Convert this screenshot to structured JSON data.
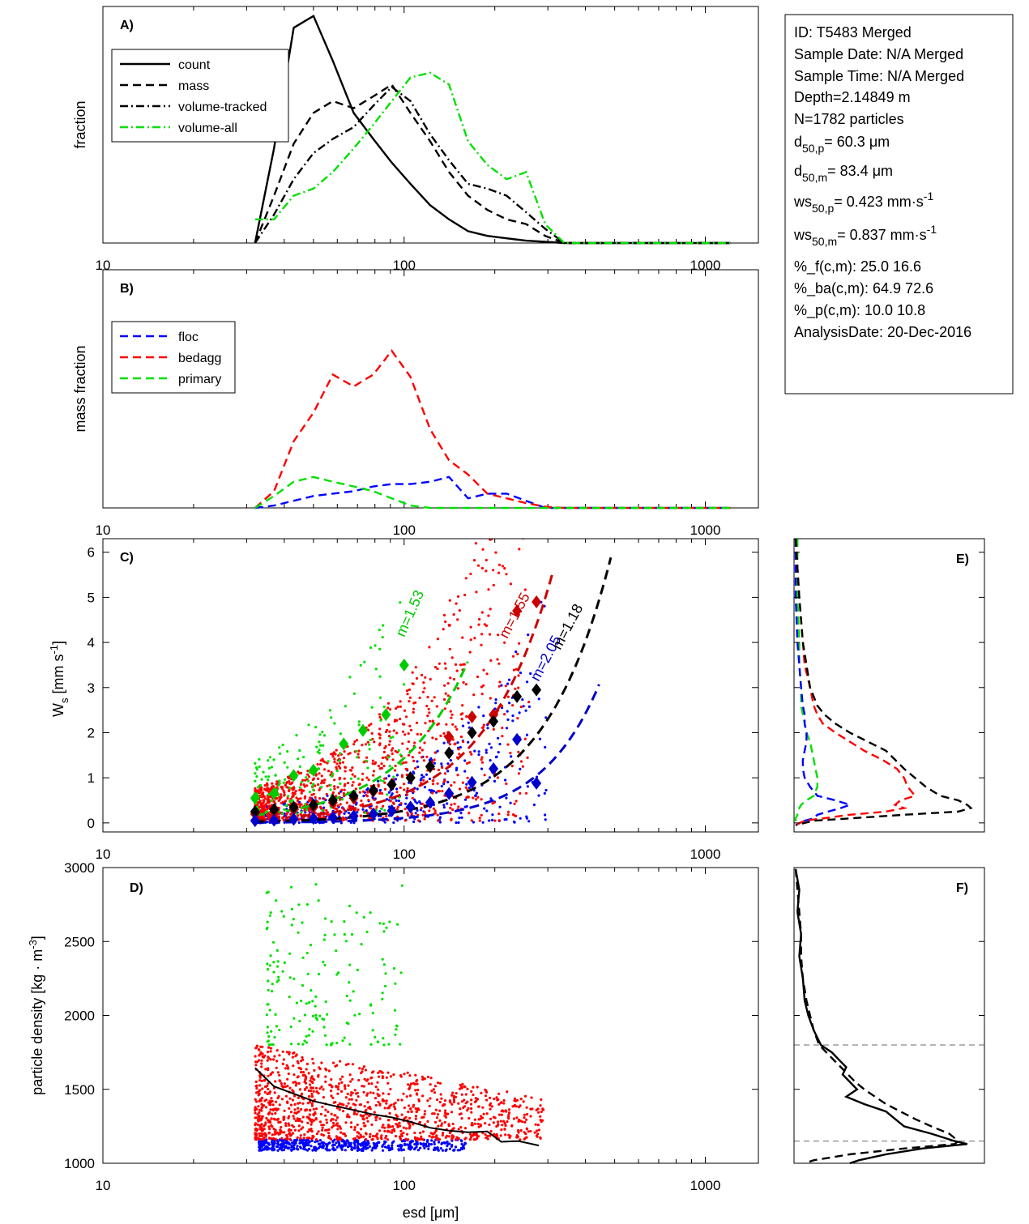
{
  "info_box": {
    "lines": [
      {
        "t": "ID: T5483 Merged"
      },
      {
        "t": "Sample Date: N/A Merged"
      },
      {
        "t": "Sample Time: N/A Merged"
      },
      {
        "t": "Depth=2.14849 m"
      },
      {
        "t": "N=1782 particles"
      },
      {
        "t": "d",
        "sub": "50,p",
        "rest": "=  60.3 μm"
      },
      {
        "t": "d",
        "sub": "50,m",
        "rest": "=  83.4 μm"
      },
      {
        "t": "ws",
        "sub": "50,p",
        "rest": "= 0.423 mm·s",
        "sup": "-1"
      },
      {
        "t": "ws",
        "sub": "50,m",
        "rest": "= 0.837 mm·s",
        "sup": "-1"
      },
      {
        "t": "%_f(c,m): 25.0 16.6"
      },
      {
        "t": "%_ba(c,m): 64.9 72.6"
      },
      {
        "t": "%_p(c,m): 10.0 10.8"
      },
      {
        "t": "AnalysisDate: 20-Dec-2016"
      }
    ]
  },
  "chart_data": [
    {
      "panel": "A)",
      "type": "line",
      "xscale": "log",
      "xlim": [
        10,
        1500
      ],
      "ylim": [
        0,
        1
      ],
      "ylabel": "fraction",
      "xticks": [
        10,
        100,
        1000
      ],
      "xticklabels": [
        "10",
        "100",
        "1000"
      ],
      "legend": "top-left",
      "x": [
        32,
        37,
        43,
        50,
        58,
        68,
        79,
        91,
        105,
        122,
        141,
        163,
        189,
        219,
        254,
        294,
        340,
        394,
        456,
        528,
        611,
        707,
        818,
        946,
        1095,
        1210
      ],
      "series": [
        {
          "name": "count",
          "color": "#000000",
          "dash": "solid",
          "values": [
            0.0,
            0.4,
            0.91,
            0.96,
            0.77,
            0.55,
            0.44,
            0.34,
            0.25,
            0.16,
            0.1,
            0.05,
            0.03,
            0.02,
            0.01,
            0.005,
            0.0,
            0.0,
            0.0,
            0.0,
            0.0,
            0.0,
            0.0,
            0.0,
            0.0,
            0.0
          ]
        },
        {
          "name": "mass",
          "color": "#000000",
          "dash": "dash",
          "values": [
            0.0,
            0.2,
            0.42,
            0.55,
            0.6,
            0.57,
            0.62,
            0.67,
            0.55,
            0.43,
            0.3,
            0.2,
            0.14,
            0.1,
            0.08,
            0.03,
            0.0,
            0.0,
            0.0,
            0.0,
            0.0,
            0.0,
            0.0,
            0.0,
            0.0,
            0.0
          ]
        },
        {
          "name": "volume-tracked",
          "color": "#000000",
          "dash": "dashdot",
          "values": [
            0.0,
            0.12,
            0.27,
            0.38,
            0.44,
            0.49,
            0.58,
            0.66,
            0.6,
            0.46,
            0.35,
            0.25,
            0.23,
            0.2,
            0.13,
            0.06,
            0.0,
            0.0,
            0.0,
            0.0,
            0.0,
            0.0,
            0.0,
            0.0,
            0.0,
            0.0
          ]
        },
        {
          "name": "volume-all",
          "color": "#00e000",
          "dash": "dashdot",
          "values": [
            0.1,
            0.1,
            0.2,
            0.23,
            0.3,
            0.4,
            0.5,
            0.6,
            0.7,
            0.72,
            0.67,
            0.43,
            0.33,
            0.27,
            0.3,
            0.08,
            0.0,
            0.0,
            0.0,
            0.0,
            0.0,
            0.0,
            0.0,
            0.0,
            0.0,
            0.0
          ]
        }
      ]
    },
    {
      "panel": "B)",
      "type": "line",
      "xscale": "log",
      "xlim": [
        10,
        1500
      ],
      "ylim": [
        0,
        1
      ],
      "ylabel": "mass fraction",
      "xticks": [
        10,
        100,
        1000
      ],
      "xticklabels": [
        "10",
        "100",
        "1000"
      ],
      "legend": "top-left",
      "x": [
        32,
        37,
        43,
        50,
        58,
        68,
        79,
        91,
        105,
        122,
        141,
        163,
        189,
        219,
        254,
        294,
        340,
        394,
        456,
        528,
        611,
        707,
        818,
        946,
        1095,
        1210
      ],
      "series": [
        {
          "name": "floc",
          "color": "#0000ff",
          "dash": "dash",
          "values": [
            0.0,
            0.01,
            0.03,
            0.05,
            0.06,
            0.07,
            0.09,
            0.1,
            0.1,
            0.11,
            0.13,
            0.04,
            0.06,
            0.06,
            0.03,
            0.0,
            0.0,
            0.0,
            0.0,
            0.0,
            0.0,
            0.0,
            0.0,
            0.0,
            0.0,
            0.0
          ]
        },
        {
          "name": "bedagg",
          "color": "#ff0000",
          "dash": "dash",
          "values": [
            0.0,
            0.07,
            0.28,
            0.4,
            0.56,
            0.51,
            0.56,
            0.66,
            0.55,
            0.33,
            0.2,
            0.14,
            0.06,
            0.04,
            0.02,
            0.005,
            0.0,
            0.0,
            0.0,
            0.0,
            0.0,
            0.0,
            0.0,
            0.0,
            0.0,
            0.0
          ]
        },
        {
          "name": "primary",
          "color": "#00e000",
          "dash": "dash",
          "values": [
            0.0,
            0.05,
            0.11,
            0.13,
            0.11,
            0.09,
            0.07,
            0.04,
            0.01,
            0.0,
            0.0,
            0.0,
            0.0,
            0.0,
            0.0,
            0.0,
            0.0,
            0.0,
            0.0,
            0.0,
            0.0,
            0.0,
            0.0,
            0.0,
            0.0,
            0.0
          ]
        }
      ]
    },
    {
      "panel": "C)",
      "type": "scatter",
      "xscale": "log",
      "xlim": [
        10,
        1500
      ],
      "ylim": [
        -0.2,
        6.3
      ],
      "ylabel": "W",
      "ylabel_sub": "s",
      "ylabel_rest": " [mm s",
      "ylabel_sup": "-1",
      "ylabel_end": "]",
      "xticks": [
        10,
        100,
        1000
      ],
      "xticklabels": [
        "10",
        "100",
        "1000"
      ],
      "yticks": [
        0,
        1,
        2,
        3,
        4,
        5,
        6
      ],
      "yticklabels": [
        "0",
        "1",
        "2",
        "3",
        "4",
        "5",
        "6"
      ],
      "scatter_groups": [
        {
          "name": "floc",
          "color": "#0000ff",
          "x_range": [
            32,
            300
          ],
          "ws_low": 0.0,
          "ws_high_coef": 0.9,
          "n": 480
        },
        {
          "name": "bedagg",
          "color": "#ff0000",
          "x_range": [
            32,
            260
          ],
          "ws_low": 0.05,
          "ws_high_coef": 2.4,
          "n": 1150
        },
        {
          "name": "primary",
          "color": "#00e000",
          "x_range": [
            32,
            100
          ],
          "ws_low": 0.2,
          "ws_high_coef": 4.2,
          "n": 170
        }
      ],
      "binned_means": [
        {
          "name": "primary",
          "color": "#00cc00",
          "x": [
            32,
            37,
            43,
            50,
            63,
            73,
            87,
            100
          ],
          "y": [
            0.55,
            0.65,
            1.05,
            1.17,
            1.75,
            2.05,
            2.4,
            3.5
          ]
        },
        {
          "name": "bedagg",
          "color": "#cc0000",
          "x": [
            32,
            37,
            43,
            50,
            58,
            68,
            79,
            91,
            105,
            122,
            141,
            168,
            198,
            237,
            275
          ],
          "y": [
            0.2,
            0.25,
            0.3,
            0.35,
            0.45,
            0.55,
            0.7,
            0.85,
            1.0,
            1.25,
            1.9,
            2.35,
            2.4,
            4.7,
            4.9
          ]
        },
        {
          "name": "all",
          "color": "#000000",
          "x": [
            32,
            37,
            43,
            50,
            58,
            68,
            79,
            91,
            105,
            122,
            141,
            168,
            198,
            237,
            275
          ],
          "y": [
            0.25,
            0.3,
            0.35,
            0.4,
            0.5,
            0.6,
            0.72,
            0.85,
            1.0,
            1.25,
            1.55,
            2.0,
            2.25,
            2.8,
            2.95
          ]
        },
        {
          "name": "floc",
          "color": "#0000cc",
          "x": [
            32,
            37,
            43,
            50,
            58,
            68,
            79,
            91,
            105,
            122,
            141,
            168,
            198,
            237,
            275
          ],
          "y": [
            0.05,
            0.06,
            0.08,
            0.1,
            0.12,
            0.15,
            0.2,
            0.27,
            0.35,
            0.45,
            0.65,
            0.9,
            1.2,
            1.85,
            0.88
          ]
        }
      ],
      "fits": [
        {
          "label": "m=1.53",
          "color": "#00cc00",
          "a": 0.000262,
          "b": 1.87,
          "x_end": 165,
          "label_x": 108,
          "label_y": 4.6,
          "angle": -66
        },
        {
          "label": "m=1.55",
          "color": "#cc0000",
          "a": 0.000114,
          "b": 1.88,
          "x_end": 320,
          "label_x": 240,
          "label_y": 4.55,
          "angle": -62
        },
        {
          "label": "m=2.05",
          "color": "#0000cc",
          "a": 3.6e-06,
          "b": 2.24,
          "x_end": 455,
          "label_x": 305,
          "label_y": 3.6,
          "angle": -62
        },
        {
          "label": "m=1.18",
          "color": "#000000",
          "a": 3.4e-05,
          "b": 1.95,
          "x_end": 490,
          "label_x": 360,
          "label_y": 4.3,
          "angle": -62
        }
      ]
    },
    {
      "panel": "D)",
      "type": "scatter",
      "xscale": "log",
      "xlim": [
        10,
        1500
      ],
      "ylim": [
        1000,
        3000
      ],
      "ylabel": "particle density [kg · m",
      "ylabel_sup": "-3",
      "ylabel_end": "]",
      "xlabel": "esd [",
      "xlabel_mu": "μ",
      "xlabel_end": "m]",
      "xticks": [
        10,
        100,
        1000
      ],
      "xticklabels": [
        "10",
        "100",
        "1000"
      ],
      "yticks": [
        1000,
        1500,
        2000,
        2500,
        3000
      ],
      "yticklabels": [
        "1000",
        "1500",
        "2000",
        "2500",
        "3000"
      ],
      "scatter_groups": [
        {
          "name": "floc",
          "color": "#0000ff",
          "x_range": [
            33,
            160
          ],
          "y_range": [
            1085,
            1160
          ],
          "n": 480
        },
        {
          "name": "bedagg",
          "color": "#ff0000",
          "x_range": [
            32,
            290
          ],
          "y_range": [
            1160,
            1800
          ],
          "n": 1150
        },
        {
          "name": "primary",
          "color": "#00e000",
          "x_range": [
            35,
            100
          ],
          "y_range": [
            1800,
            2900
          ],
          "n": 170
        }
      ],
      "mean_line": {
        "color": "#000000",
        "x": [
          32,
          37,
          43,
          50,
          58,
          68,
          79,
          91,
          105,
          122,
          141,
          163,
          189,
          210,
          240,
          280
        ],
        "y": [
          1645,
          1520,
          1470,
          1420,
          1390,
          1360,
          1330,
          1310,
          1280,
          1240,
          1220,
          1210,
          1215,
          1145,
          1150,
          1120
        ]
      }
    },
    {
      "panel": "E)",
      "type": "line",
      "orientation": "vertical-profile",
      "ylim": [
        -0.2,
        6.3
      ],
      "xlim": [
        0,
        1
      ],
      "y": [
        6.3,
        5.0,
        4.0,
        3.5,
        3.0,
        2.6,
        2.4,
        2.2,
        2.0,
        1.8,
        1.6,
        1.4,
        1.2,
        1.0,
        0.8,
        0.6,
        0.5,
        0.4,
        0.33,
        0.25,
        0.18,
        0.1,
        0.05,
        -0.05
      ],
      "series": [
        {
          "name": "primary",
          "color": "#00e000",
          "values": [
            0.01,
            0.01,
            0.02,
            0.02,
            0.03,
            0.03,
            0.04,
            0.05,
            0.06,
            0.08,
            0.09,
            0.1,
            0.11,
            0.12,
            0.12,
            0.1,
            0.06,
            0.03,
            0.02,
            0.01,
            0.01,
            0.0,
            0.0,
            0.0
          ]
        },
        {
          "name": "floc",
          "color": "#0000ff",
          "values": [
            0.0,
            0.0,
            0.01,
            0.02,
            0.03,
            0.04,
            0.05,
            0.05,
            0.06,
            0.06,
            0.05,
            0.04,
            0.04,
            0.05,
            0.08,
            0.12,
            0.22,
            0.3,
            0.25,
            0.18,
            0.12,
            0.1,
            0.05,
            0.0
          ]
        },
        {
          "name": "bedagg",
          "color": "#ff0000",
          "values": [
            0.0,
            0.02,
            0.04,
            0.05,
            0.08,
            0.1,
            0.12,
            0.15,
            0.22,
            0.3,
            0.38,
            0.48,
            0.56,
            0.6,
            0.62,
            0.66,
            0.58,
            0.55,
            0.6,
            0.5,
            0.3,
            0.15,
            0.05,
            0.0
          ]
        },
        {
          "name": "all",
          "color": "#000000",
          "values": [
            0.0,
            0.02,
            0.04,
            0.06,
            0.08,
            0.12,
            0.16,
            0.22,
            0.3,
            0.4,
            0.5,
            0.55,
            0.6,
            0.66,
            0.72,
            0.8,
            0.9,
            0.95,
            0.97,
            0.9,
            0.6,
            0.3,
            0.1,
            0.0
          ]
        }
      ]
    },
    {
      "panel": "F)",
      "type": "line",
      "orientation": "vertical-profile",
      "ylim": [
        1000,
        3000
      ],
      "xlim": [
        0,
        1
      ],
      "reference_lines_y": [
        1800,
        1150
      ],
      "y": [
        2990,
        2850,
        2700,
        2550,
        2400,
        2250,
        2100,
        2000,
        1900,
        1800,
        1750,
        1700,
        1650,
        1600,
        1550,
        1500,
        1450,
        1400,
        1350,
        1300,
        1250,
        1200,
        1150,
        1130,
        1100,
        1060,
        1020,
        1000
      ],
      "series": [
        {
          "name": "measured",
          "color": "#000000",
          "dash": "solid",
          "values": [
            0.0,
            0.02,
            0.01,
            0.03,
            0.02,
            0.04,
            0.05,
            0.07,
            0.1,
            0.14,
            0.2,
            0.24,
            0.28,
            0.26,
            0.3,
            0.34,
            0.28,
            0.38,
            0.5,
            0.55,
            0.6,
            0.75,
            0.88,
            0.95,
            0.7,
            0.5,
            0.35,
            0.3
          ]
        },
        {
          "name": "fit",
          "color": "#000000",
          "dash": "dash",
          "values": [
            0.0,
            0.01,
            0.02,
            0.03,
            0.03,
            0.04,
            0.06,
            0.08,
            0.1,
            0.13,
            0.17,
            0.21,
            0.25,
            0.29,
            0.33,
            0.38,
            0.44,
            0.5,
            0.58,
            0.66,
            0.75,
            0.85,
            0.9,
            0.88,
            0.6,
            0.3,
            0.1,
            0.05
          ]
        }
      ]
    }
  ]
}
